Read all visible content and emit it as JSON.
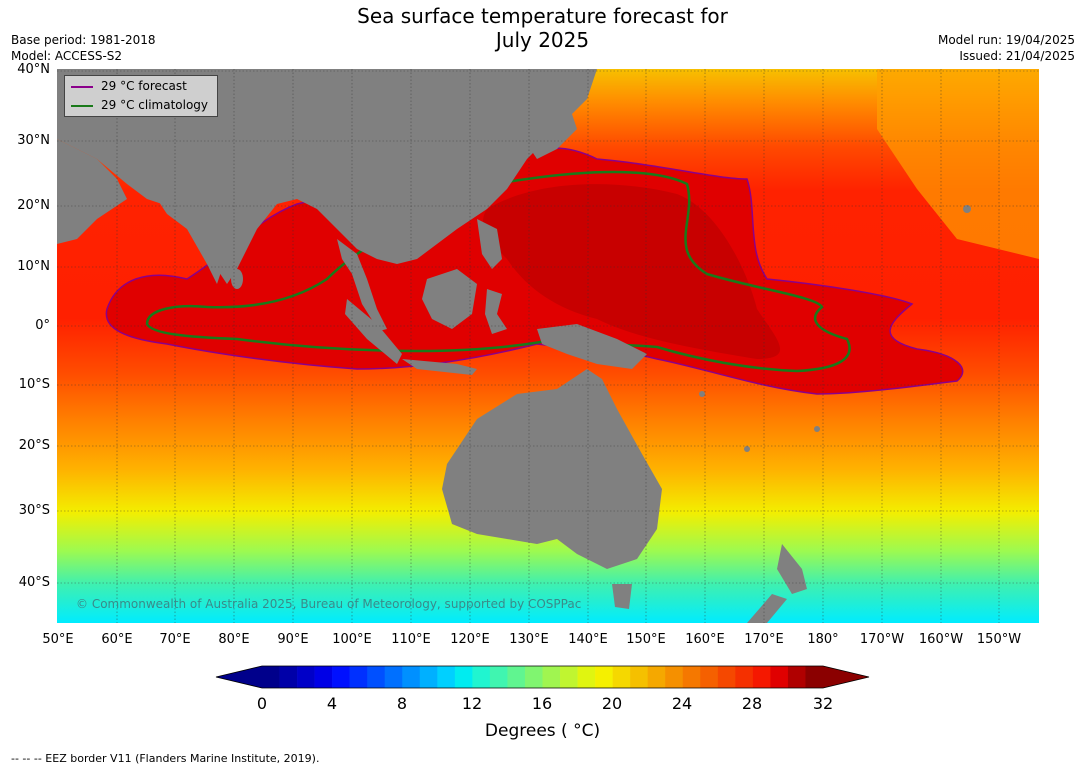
{
  "header": {
    "title_line1": "Sea surface temperature forecast for",
    "title_line2": "July 2025",
    "base_period": "Base period: 1981-2018",
    "model": "Model: ACCESS-S2",
    "model_run": "Model run: 19/04/2025",
    "issued": "Issued: 21/04/2025"
  },
  "axes": {
    "latitudes": [
      "40°N",
      "30°N",
      "20°N",
      "10°N",
      "0°",
      "10°S",
      "20°S",
      "30°S",
      "40°S"
    ],
    "longitudes": [
      "50°E",
      "60°E",
      "70°E",
      "80°E",
      "90°E",
      "100°E",
      "110°E",
      "120°E",
      "130°E",
      "140°E",
      "150°E",
      "160°E",
      "170°E",
      "180°",
      "170°W",
      "160°W",
      "150°W"
    ]
  },
  "legend": {
    "forecast_label": "29 °C  forecast",
    "forecast_color": "#8b008b",
    "climatology_label": "29 °C  climatology",
    "climatology_color": "#1a7a1a"
  },
  "copyright": "© Commonwealth of Australia 2025, Bureau of Meteorology, supported by COSPPac",
  "colorbar": {
    "ticks": [
      "0",
      "4",
      "8",
      "12",
      "16",
      "20",
      "24",
      "28",
      "32"
    ],
    "title": "Degrees ( °C)"
  },
  "footnote": "--  --  -- EEZ border V11 (Flanders Marine Institute, 2019)."
}
